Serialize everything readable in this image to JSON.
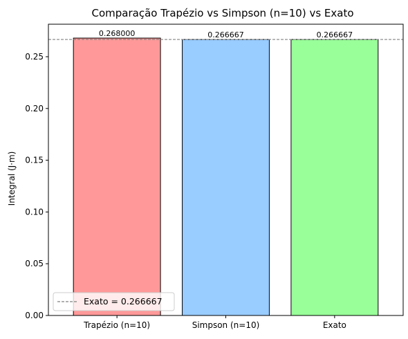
{
  "chart_data": {
    "type": "bar",
    "title": "Comparação Trapézio vs Simpson (n=10) vs Exato",
    "xlabel": "",
    "ylabel": "Integral (J·m)",
    "categories": [
      "Trapézio (n=10)",
      "Simpson (n=10)",
      "Exato"
    ],
    "values": [
      0.268,
      0.266667,
      0.266667
    ],
    "value_labels": [
      "0.268000",
      "0.266667",
      "0.266667"
    ],
    "colors": [
      "#ff9999",
      "#99ccff",
      "#99ff99"
    ],
    "edge_color": "#000000",
    "ylim": [
      0,
      0.2814
    ],
    "yticks": [
      0.0,
      0.05,
      0.1,
      0.15,
      0.2,
      0.25
    ],
    "ytick_labels": [
      "0.00",
      "0.05",
      "0.10",
      "0.15",
      "0.20",
      "0.25"
    ],
    "reference_line": {
      "value": 0.266667,
      "style": "dashed",
      "color": "#808080",
      "label": "Exato = 0.266667"
    },
    "legend": {
      "position": "lower-left",
      "entries": [
        "Exato = 0.266667"
      ]
    },
    "grid": false
  }
}
